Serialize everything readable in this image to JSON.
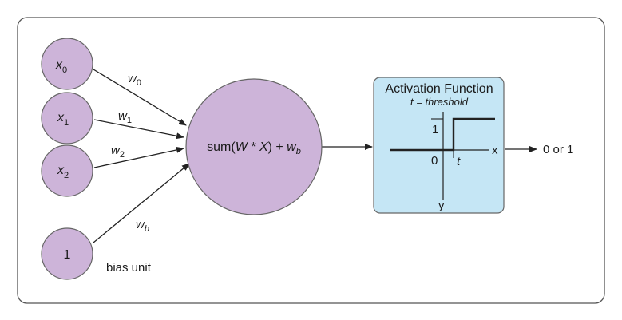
{
  "colors": {
    "node_fill": "#cdb4d9",
    "node_stroke": "#666666",
    "activation_fill": "#c5e6f5",
    "activation_stroke": "#666666",
    "frame_stroke": "#555555",
    "line": "#222222"
  },
  "inputs": [
    {
      "base": "x",
      "sub": "0"
    },
    {
      "base": "x",
      "sub": "1"
    },
    {
      "base": "x",
      "sub": "2"
    },
    {
      "base": "1",
      "sub": ""
    }
  ],
  "weights": [
    {
      "base": "w",
      "sub": "0"
    },
    {
      "base": "w",
      "sub": "1"
    },
    {
      "base": "w",
      "sub": "2"
    },
    {
      "base": "w",
      "sub": "b"
    }
  ],
  "bias_label": "bias unit",
  "sum_node": {
    "prefix": "sum(",
    "w": "W",
    "times": " * ",
    "x": "X",
    "suffix": ") + ",
    "wb_base": "w",
    "wb_sub": "b"
  },
  "activation": {
    "title": "Activation Function",
    "subtitle": "t = threshold",
    "tick_one": "1",
    "origin": "0",
    "x_label": "x",
    "y_label": "y",
    "t_label": "t"
  },
  "output_label": "0 or 1"
}
